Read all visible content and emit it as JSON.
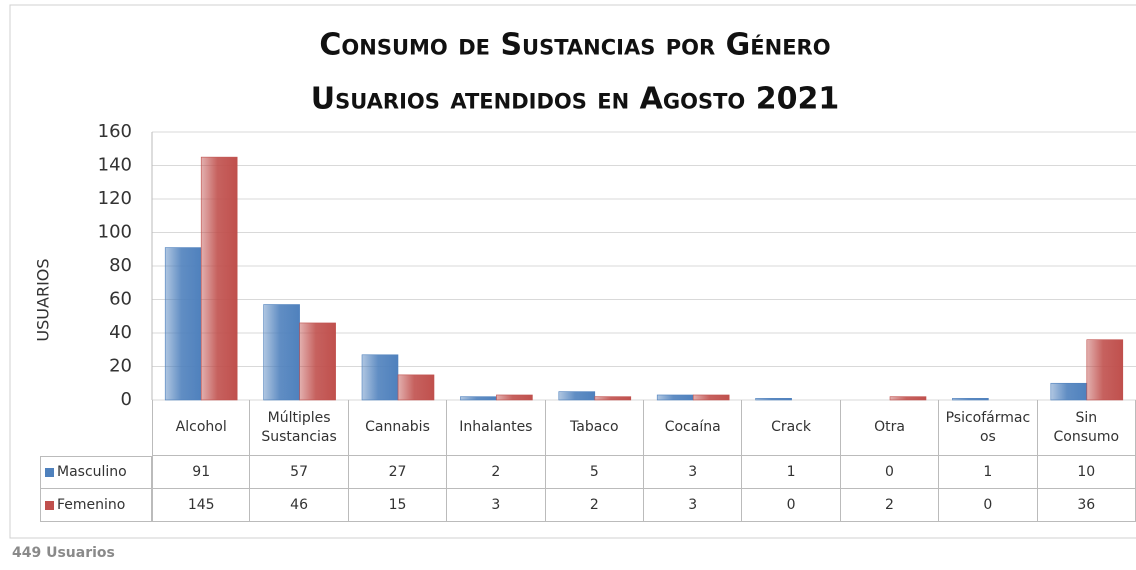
{
  "chart_data": {
    "type": "bar",
    "title": "Consumo de Sustancias por Género",
    "subtitle": "Usuarios atendidos en Agosto 2021",
    "y_label": "USUARIOS",
    "categories": [
      "Alcohol",
      "Múltiples Sustancias",
      "Cannabis",
      "Inhalantes",
      "Tabaco",
      "Cocaína",
      "Crack",
      "Otra",
      "Psicofármacos",
      "Sin Consumo"
    ],
    "series": [
      {
        "name": "Masculino",
        "color": "#4f81bd",
        "values": [
          91,
          57,
          27,
          2,
          5,
          3,
          1,
          0,
          1,
          10
        ]
      },
      {
        "name": "Femenino",
        "color": "#c0504d",
        "values": [
          145,
          46,
          15,
          3,
          2,
          3,
          0,
          2,
          0,
          36
        ]
      }
    ],
    "ylim": [
      0,
      160
    ],
    "yticks": [
      0,
      20,
      40,
      60,
      80,
      100,
      120,
      140,
      160
    ],
    "grid": true,
    "note": "449 Usuarios"
  }
}
